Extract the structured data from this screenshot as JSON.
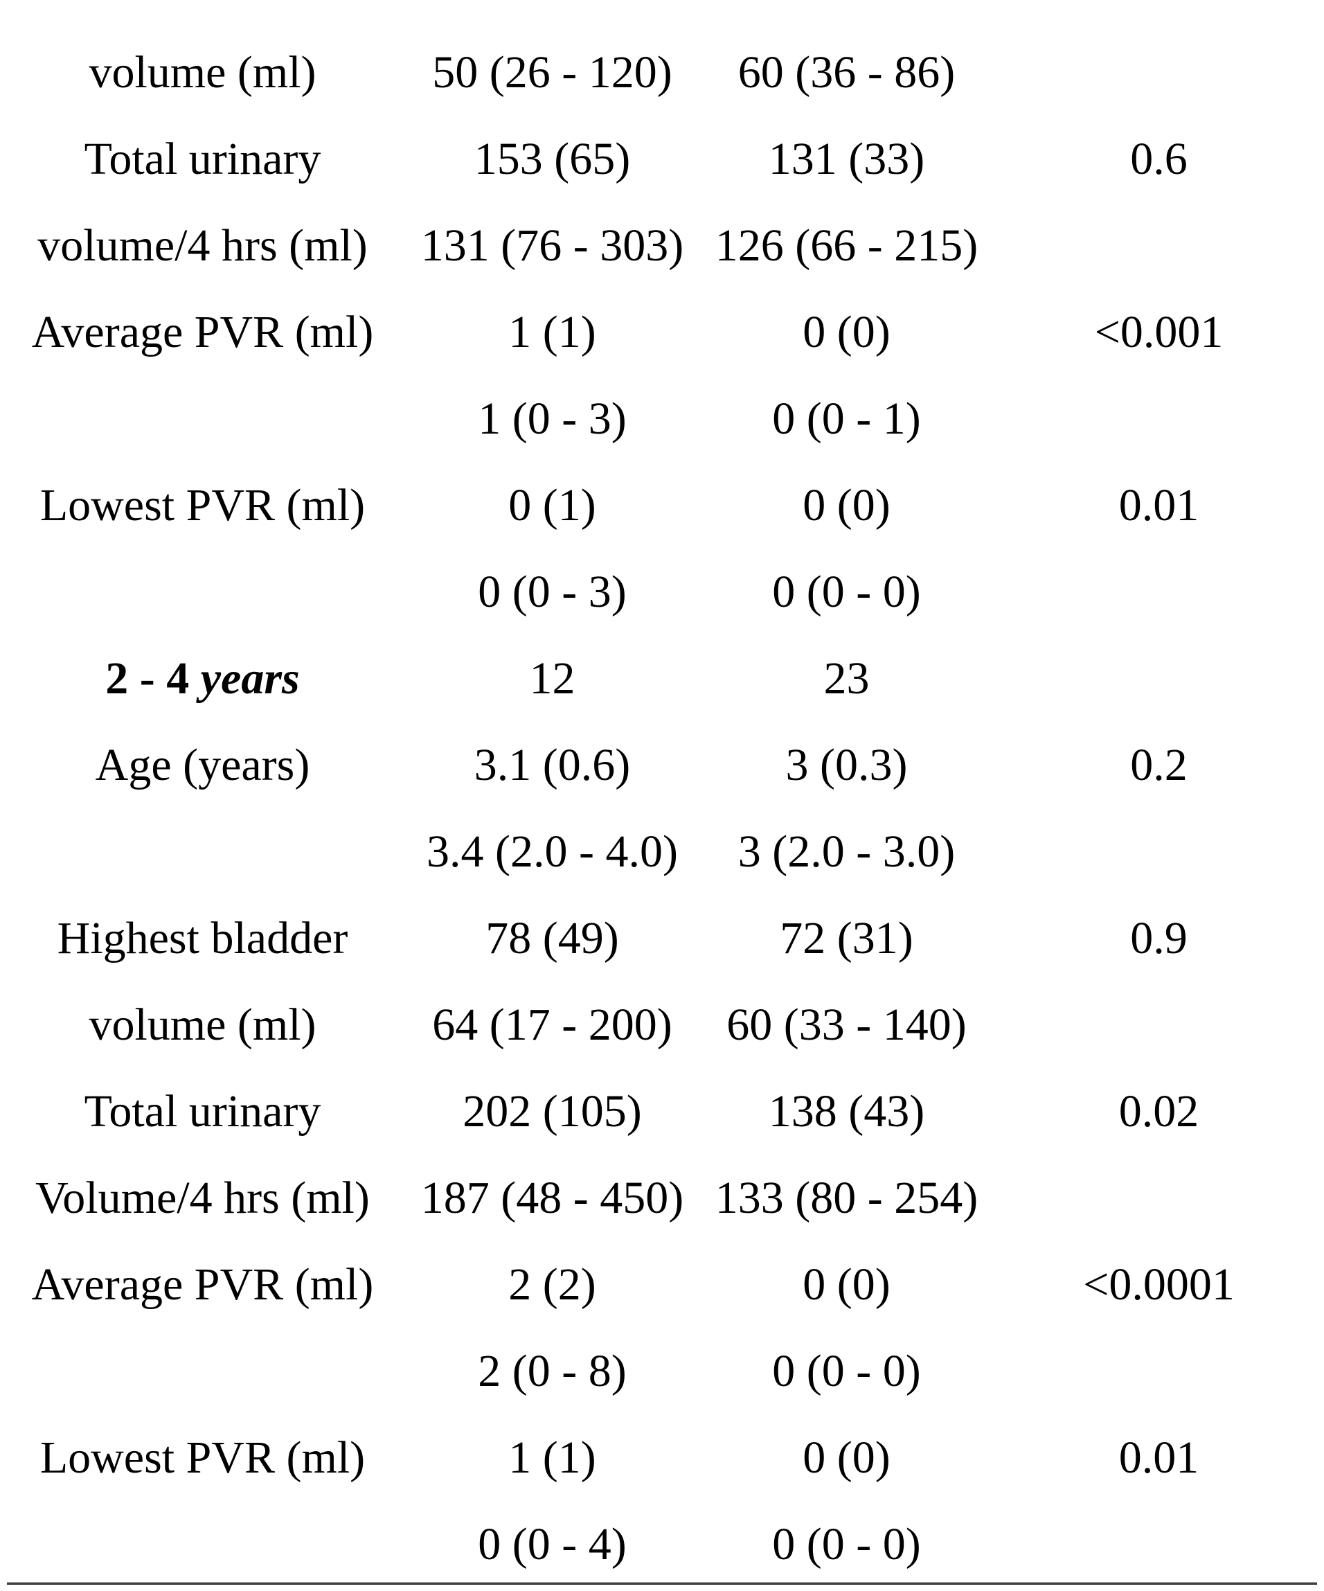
{
  "page": {
    "background_color": "#ffffff",
    "text_color": "#000000",
    "bottom_rule_color": "#3f3f3f"
  },
  "table": {
    "columns": [
      "parameter",
      "group1",
      "group2",
      "p_value"
    ],
    "rows": [
      {
        "label": "volume (ml)",
        "g1": "50 (26 - 120)",
        "g2": "60 (36 - 86)",
        "p": ""
      },
      {
        "label": "Total urinary",
        "g1": "153 (65)",
        "g2": "131 (33)",
        "p": "0.6"
      },
      {
        "label": "volume/4 hrs (ml)",
        "g1": "131 (76 - 303)",
        "g2": "126 (66 - 215)",
        "p": ""
      },
      {
        "label": "Average PVR (ml)",
        "g1": "1 (1)",
        "g2": "0 (0)",
        "p": "<0.001"
      },
      {
        "label": "",
        "g1": "1 (0 - 3)",
        "g2": "0 (0 - 1)",
        "p": ""
      },
      {
        "label": "Lowest PVR (ml)",
        "g1": "0 (1)",
        "g2": "0 (0)",
        "p": "0.01"
      },
      {
        "label": "",
        "g1": "0 (0 - 3)",
        "g2": "0 (0 - 0)",
        "p": ""
      },
      {
        "label": "2 - 4 ",
        "label_italic": "years",
        "group_header": true,
        "g1": "12",
        "g2": "23",
        "p": ""
      },
      {
        "label": "Age (years)",
        "g1": "3.1 (0.6)",
        "g2": "3 (0.3)",
        "p": "0.2"
      },
      {
        "label": "",
        "g1": "3.4 (2.0 - 4.0)",
        "g2": "3 (2.0 - 3.0)",
        "p": ""
      },
      {
        "label": "Highest bladder",
        "g1": "78 (49)",
        "g2": "72 (31)",
        "p": "0.9"
      },
      {
        "label": "volume (ml)",
        "g1": "64 (17 - 200)",
        "g2": "60 (33 - 140)",
        "p": ""
      },
      {
        "label": "Total urinary",
        "g1": "202 (105)",
        "g2": "138 (43)",
        "p": "0.02"
      },
      {
        "label": "Volume/4 hrs (ml)",
        "g1": "187 (48 - 450)",
        "g2": "133 (80 - 254)",
        "p": ""
      },
      {
        "label": "Average PVR (ml)",
        "g1": "2 (2)",
        "g2": "0 (0)",
        "p": "<0.0001"
      },
      {
        "label": "",
        "g1": "2 (0 - 8)",
        "g2": "0 (0 - 0)",
        "p": ""
      },
      {
        "label": "Lowest PVR (ml)",
        "g1": "1 (1)",
        "g2": "0 (0)",
        "p": "0.01"
      },
      {
        "label": "",
        "g1": "0 (0 - 4)",
        "g2": "0 (0 - 0)",
        "p": ""
      }
    ]
  }
}
